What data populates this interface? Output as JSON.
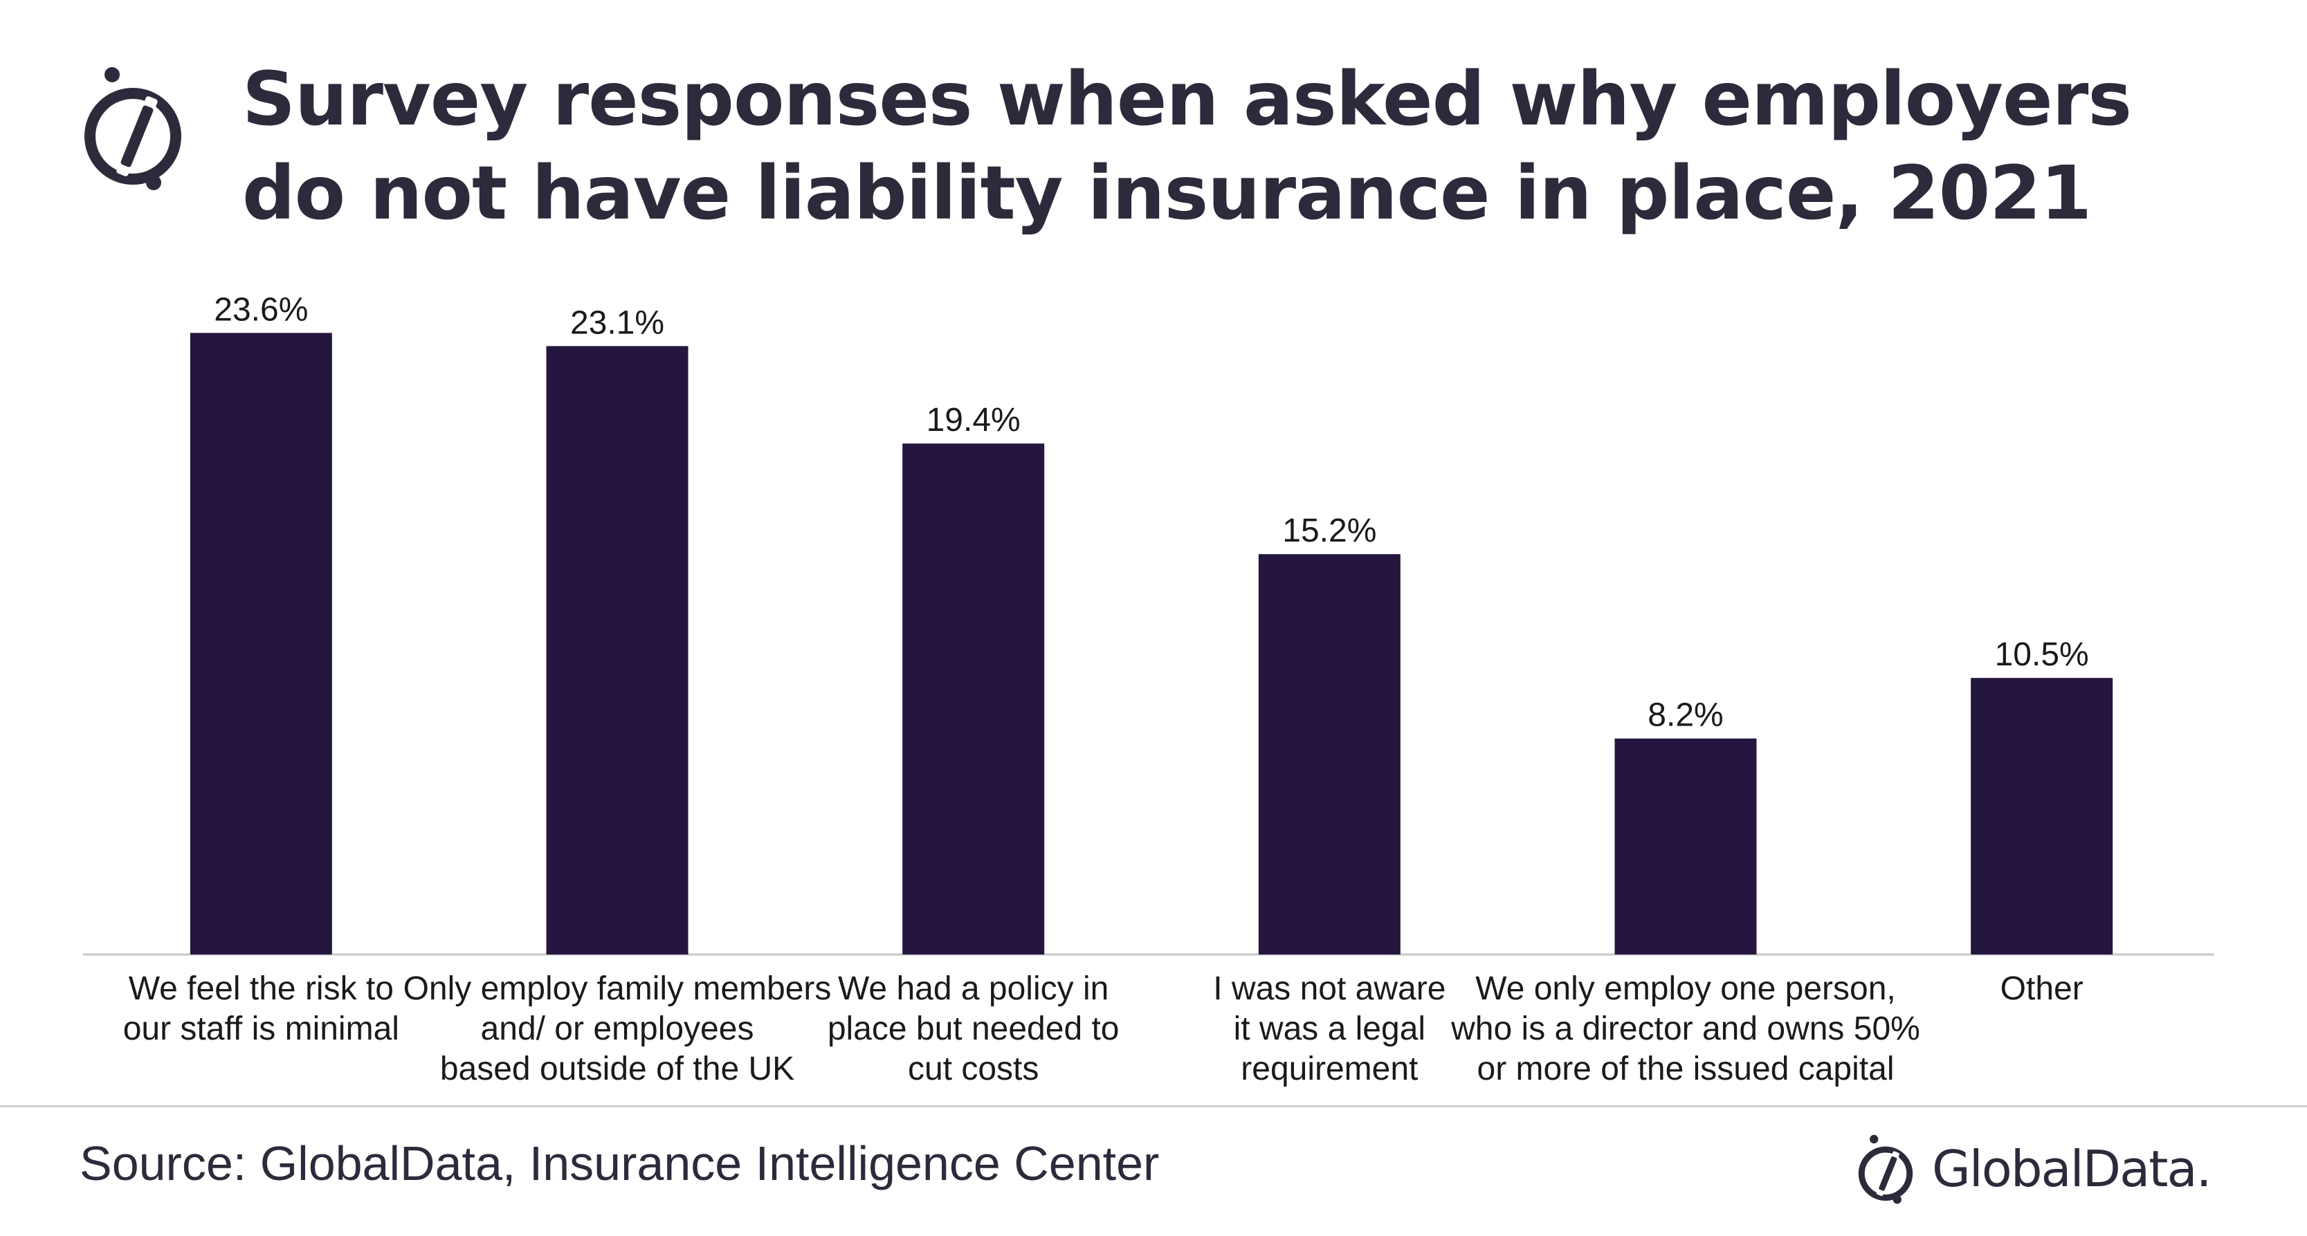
{
  "title": "Survey responses when asked why employers do not have liability insurance in place, 2021",
  "source": "Source: GlobalData, Insurance Intelligence Center",
  "brand": {
    "name": "GlobalData."
  },
  "colors": {
    "bar": "#251640",
    "text": "#2b2b3c",
    "axis": "#c8c8c8"
  },
  "icons": {
    "title_icon": "globaldata-logo-icon",
    "brand_icon": "globaldata-logo-icon"
  },
  "chart_data": {
    "type": "bar",
    "title": "Survey responses when asked why employers do not have liability insurance in place, 2021",
    "xlabel": "",
    "ylabel": "",
    "ylim": [
      0,
      25
    ],
    "grid": false,
    "legend": "none",
    "categories": [
      [
        "We feel the risk to",
        "our staff is minimal"
      ],
      [
        "Only employ family members",
        "and/ or employees",
        "based outside of the UK"
      ],
      [
        "We had a policy in",
        "place but needed to",
        "cut costs"
      ],
      [
        "I was not aware",
        "it was a legal",
        "requirement"
      ],
      [
        "We only employ one person,",
        "who is a director and owns 50%",
        "or more of the issued capital"
      ],
      [
        "Other"
      ]
    ],
    "values": [
      23.6,
      23.1,
      19.4,
      15.2,
      8.2,
      10.5
    ],
    "data_labels": [
      "23.6%",
      "23.1%",
      "19.4%",
      "15.2%",
      "8.2%",
      "10.5%"
    ]
  }
}
